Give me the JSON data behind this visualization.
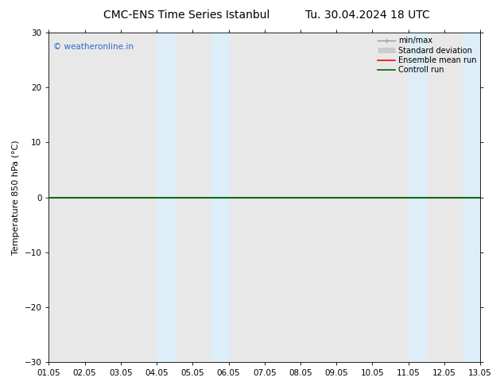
{
  "title_left": "CMC-ENS Time Series Istanbul",
  "title_right": "Tu. 30.04.2024 18 UTC",
  "ylabel": "Temperature 850 hPa (°C)",
  "ylim": [
    -30,
    30
  ],
  "yticks": [
    -30,
    -20,
    -10,
    0,
    10,
    20,
    30
  ],
  "xlim": [
    0,
    12
  ],
  "xtick_labels": [
    "01.05",
    "02.05",
    "03.05",
    "04.05",
    "05.05",
    "06.05",
    "07.05",
    "08.05",
    "09.05",
    "10.05",
    "11.05",
    "12.05",
    "13.05"
  ],
  "shaded_regions": [
    [
      3,
      3.5
    ],
    [
      4.5,
      5
    ],
    [
      10,
      10.5
    ],
    [
      11.5,
      12
    ]
  ],
  "shade_color": "#ddeef8",
  "zero_line_y": 0,
  "watermark": "© weatheronline.in",
  "watermark_color": "#3366cc",
  "legend_items": [
    {
      "label": "min/max",
      "color": "#999999",
      "lw": 1.0
    },
    {
      "label": "Standard deviation",
      "color": "#cccccc",
      "lw": 5
    },
    {
      "label": "Ensemble mean run",
      "color": "#ff0000",
      "lw": 1.2
    },
    {
      "label": "Controll run",
      "color": "#006600",
      "lw": 1.2
    }
  ],
  "bg_color": "#ffffff",
  "plot_bg_color": "#e8e8e8",
  "title_fontsize": 10,
  "axis_label_fontsize": 8,
  "tick_fontsize": 7.5
}
